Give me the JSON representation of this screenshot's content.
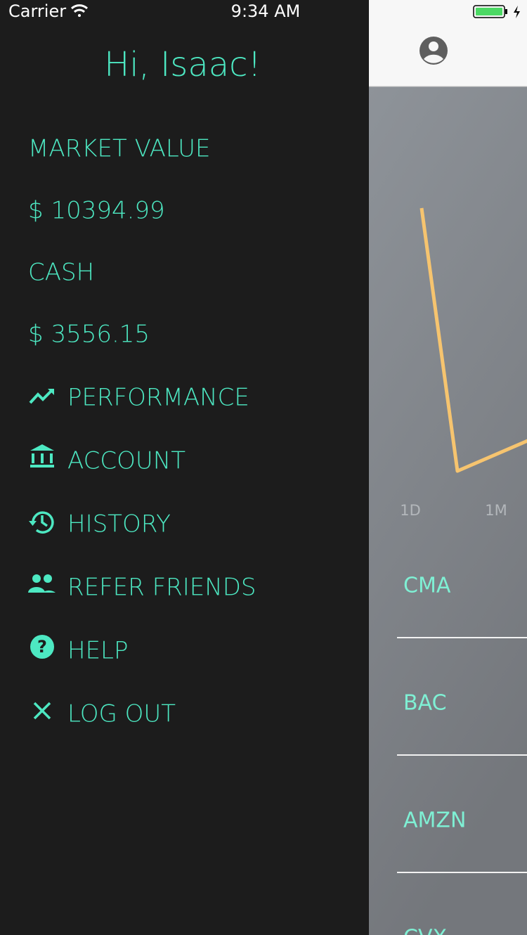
{
  "status_bar": {
    "carrier": "Carrier",
    "time": "9:34 AM"
  },
  "drawer": {
    "greeting": "Hi, Isaac!",
    "market_value_label": "MARKET VALUE",
    "market_value": "$ 10394.99",
    "cash_label": "CASH",
    "cash": "$ 3556.15",
    "menu": [
      "PERFORMANCE",
      "ACCOUNT",
      "HISTORY",
      "REFER FRIENDS",
      "HELP",
      "LOG OUT"
    ]
  },
  "main": {
    "ranges": [
      "1D",
      "1M"
    ],
    "stocks": [
      "CMA",
      "BAC",
      "AMZN",
      "CVX"
    ]
  }
}
